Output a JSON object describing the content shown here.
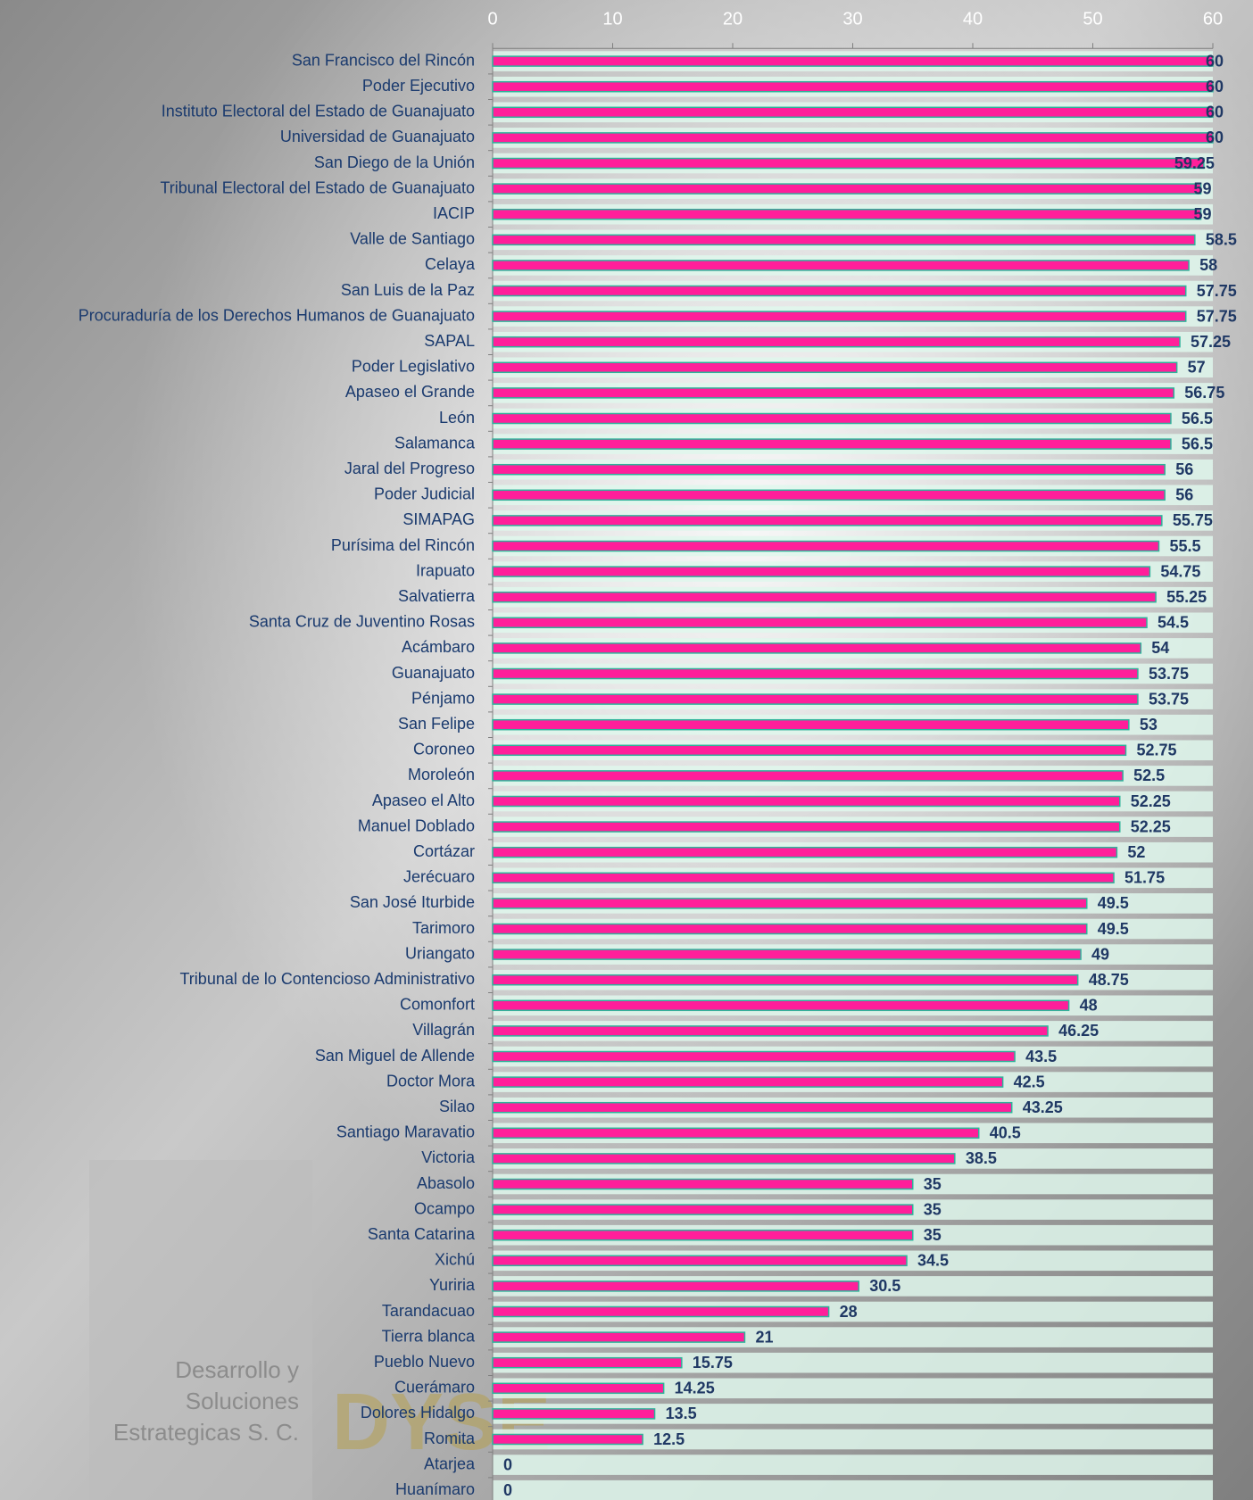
{
  "chart_data": {
    "type": "bar",
    "orientation": "horizontal",
    "categories": [
      "San Francisco del Rincón",
      "Poder Ejecutivo",
      "Instituto Electoral del Estado de Guanajuato",
      "Universidad de Guanajuato",
      "San Diego de la Unión",
      "Tribunal Electoral del Estado de Guanajuato",
      "IACIP",
      "Valle de Santiago",
      "Celaya",
      "San Luis de la Paz",
      "Procuraduría de los Derechos Humanos de Guanajuato",
      "SAPAL",
      "Poder Legislativo",
      "Apaseo el Grande",
      "León",
      "Salamanca",
      "Jaral del Progreso",
      "Poder Judicial",
      "SIMAPAG",
      "Purísima del Rincón",
      "Irapuato",
      "Salvatierra",
      "Santa Cruz de Juventino Rosas",
      "Acámbaro",
      "Guanajuato",
      "Pénjamo",
      "San Felipe",
      "Coroneo",
      "Moroleón",
      "Apaseo el Alto",
      "Manuel Doblado",
      "Cortázar",
      "Jerécuaro",
      "San José Iturbide",
      "Tarimoro",
      "Uriangato",
      "Tribunal de lo Contencioso Administrativo",
      "Comonfort",
      "Villagrán",
      "San Miguel de Allende",
      "Doctor Mora",
      "Silao",
      "Santiago Maravatio",
      "Victoria",
      "Abasolo",
      "Ocampo",
      "Santa Catarina",
      "Xichú",
      "Yuriria",
      "Tarandacuao",
      "Tierra blanca",
      "Pueblo Nuevo",
      "Cuerámaro",
      "Dolores Hidalgo",
      "Romita",
      "Atarjea",
      "Huanímaro"
    ],
    "values": [
      60,
      60,
      60,
      60,
      59.25,
      59,
      59,
      58.5,
      58,
      57.75,
      57.75,
      57.25,
      57,
      56.75,
      56.5,
      56.5,
      56,
      56,
      55.75,
      55.5,
      54.75,
      55.25,
      54.5,
      54,
      53.75,
      53.75,
      53,
      52.75,
      52.5,
      52.25,
      52.25,
      52,
      51.75,
      49.5,
      49.5,
      49,
      48.75,
      48,
      46.25,
      43.5,
      42.5,
      43.25,
      40.5,
      38.5,
      35,
      35,
      35,
      34.5,
      30.5,
      28,
      21,
      15.75,
      14.25,
      13.5,
      12.5,
      0,
      0
    ],
    "color": "#ff1f9a",
    "xlim": [
      0,
      60
    ],
    "xticks": [
      0,
      10,
      20,
      30,
      40,
      50,
      60
    ]
  },
  "logo": {
    "lines": [
      "Desarrollo y",
      "Soluciones",
      "Estrategicas S. C."
    ],
    "mark": "DYSE"
  }
}
